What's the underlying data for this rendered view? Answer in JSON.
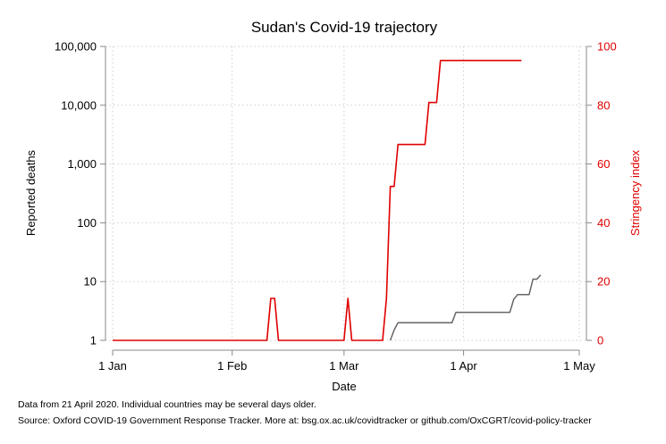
{
  "chart_data": {
    "type": "line",
    "title": "Sudan's Covid-19 trajectory",
    "xlabel": "Date",
    "x_ticks": [
      "1 Jan",
      "1 Feb",
      "1 Mar",
      "1 Apr",
      "1 May"
    ],
    "x_range": [
      "2020-01-01",
      "2020-05-01"
    ],
    "y_left": {
      "label": "Reported deaths",
      "scale": "log",
      "range": [
        1,
        100000
      ],
      "ticks": [
        1,
        10,
        100,
        1000,
        10000,
        100000
      ],
      "tick_labels": [
        "1",
        "10",
        "100",
        "1,000",
        "10,000",
        "100,000"
      ],
      "color": "#000000"
    },
    "y_right": {
      "label": "Stringency index",
      "scale": "linear",
      "range": [
        0,
        100
      ],
      "ticks": [
        0,
        20,
        40,
        60,
        80,
        100
      ],
      "tick_labels": [
        "0",
        "20",
        "40",
        "60",
        "80",
        "100"
      ],
      "color": "#e00000"
    },
    "grid": true,
    "series": [
      {
        "axis": "left",
        "color": "#666666",
        "points": [
          [
            "2020-03-13",
            1
          ],
          [
            "2020-03-14",
            1.5
          ],
          [
            "2020-03-15",
            2
          ],
          [
            "2020-03-29",
            2
          ],
          [
            "2020-03-30",
            3
          ],
          [
            "2020-04-13",
            3
          ],
          [
            "2020-04-14",
            5
          ],
          [
            "2020-04-15",
            6
          ],
          [
            "2020-04-18",
            6
          ],
          [
            "2020-04-19",
            11
          ],
          [
            "2020-04-20",
            11
          ],
          [
            "2020-04-21",
            13
          ]
        ]
      },
      {
        "axis": "right",
        "color": "#e00000",
        "points": [
          [
            "2020-01-01",
            0
          ],
          [
            "2020-02-10",
            0
          ],
          [
            "2020-02-11",
            14.29
          ],
          [
            "2020-02-12",
            14.29
          ],
          [
            "2020-02-13",
            0
          ],
          [
            "2020-03-01",
            0
          ],
          [
            "2020-03-02",
            14.29
          ],
          [
            "2020-03-03",
            0
          ],
          [
            "2020-03-11",
            0
          ],
          [
            "2020-03-12",
            14.29
          ],
          [
            "2020-03-13",
            52.38
          ],
          [
            "2020-03-14",
            52.38
          ],
          [
            "2020-03-15",
            66.67
          ],
          [
            "2020-03-22",
            66.67
          ],
          [
            "2020-03-23",
            80.95
          ],
          [
            "2020-03-24",
            80.95
          ],
          [
            "2020-03-25",
            80.95
          ],
          [
            "2020-03-26",
            95.24
          ],
          [
            "2020-04-16",
            95.24
          ]
        ]
      }
    ],
    "notes": [
      "Data from 21 April 2020. Individual countries may be several days older.",
      "Source: Oxford COVID-19 Government Response Tracker. More at: bsg.ox.ac.uk/covidtracker or github.com/OxCGRT/covid-policy-tracker"
    ]
  }
}
